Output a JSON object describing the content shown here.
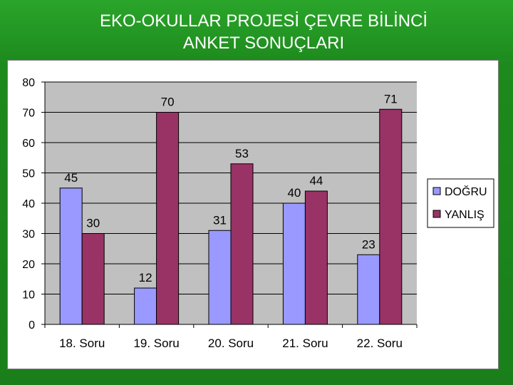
{
  "slide": {
    "title_line1": "EKO-OKULLAR PROJESİ ÇEVRE BİLİNCİ",
    "title_line2": "ANKET SONUÇLARI"
  },
  "colors": {
    "background": "#1f8f1f",
    "plot_area": "#c0c0c0",
    "series_dogru": "#9999ff",
    "series_yanlis": "#993366"
  },
  "chart_data": {
    "type": "bar",
    "title": "",
    "xlabel": "",
    "ylabel": "",
    "categories": [
      "18. Soru",
      "19. Soru",
      "20. Soru",
      "21. Soru",
      "22. Soru"
    ],
    "series": [
      {
        "name": "DOĞRU",
        "values": [
          45,
          12,
          31,
          40,
          23
        ],
        "color": "#9999ff"
      },
      {
        "name": "YANLIŞ",
        "values": [
          30,
          70,
          53,
          44,
          71
        ],
        "color": "#993366"
      }
    ],
    "ylim": [
      0,
      80
    ],
    "yticks": [
      "0",
      "10",
      "20",
      "30",
      "40",
      "50",
      "60",
      "70",
      "80"
    ],
    "grid": true,
    "legend": "right",
    "data_labels": true
  }
}
